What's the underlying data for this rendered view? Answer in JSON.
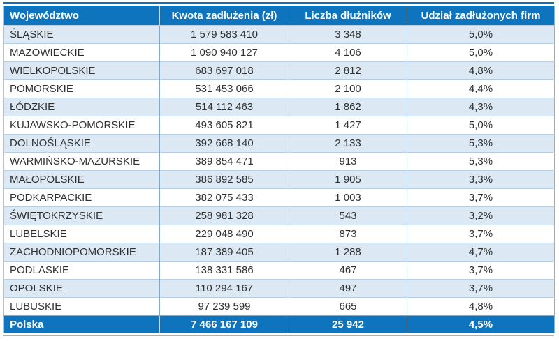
{
  "colors": {
    "header_bg": "#0E74BD",
    "stripe_bg": "#DCE9F4",
    "row_border": "#B8CFE2",
    "col_border": "#84A9C7",
    "header_divider": "#BCD6EA",
    "text_color": "#303030"
  },
  "chart_data": {
    "type": "table",
    "columns": [
      "Województwo",
      "Kwota zadłużenia (zł)",
      "Liczba dłużników",
      "Udział zadłużonych firm"
    ],
    "rows": [
      [
        "ŚLĄSKIE",
        "1 579 583 410",
        "3 348",
        "5,0%"
      ],
      [
        "MAZOWIECKIE",
        "1 090 940 127",
        "4 106",
        "5,0%"
      ],
      [
        "WIELKOPOLSKIE",
        "683 697 018",
        "2 812",
        "4,8%"
      ],
      [
        "POMORSKIE",
        "531 453 066",
        "2 100",
        "4,4%"
      ],
      [
        "ŁÓDZKIE",
        "514 112 463",
        "1 862",
        "4,3%"
      ],
      [
        "KUJAWSKO-POMORSKIE",
        "493 605 821",
        "1 427",
        "5,0%"
      ],
      [
        "DOLNOŚLĄSKIE",
        "392 668 140",
        "2 133",
        "5,3%"
      ],
      [
        "WARMIŃSKO-MAZURSKIE",
        "389 854 471",
        "913",
        "5,3%"
      ],
      [
        "MAŁOPOLSKIE",
        "386 892 585",
        "1 905",
        "3,3%"
      ],
      [
        "PODKARPACKIE",
        "382 075 433",
        "1 003",
        "3,7%"
      ],
      [
        "ŚWIĘTOKRZYSKIE",
        "258 981 328",
        "543",
        "3,2%"
      ],
      [
        "LUBELSKIE",
        "229 048 490",
        "873",
        "3,7%"
      ],
      [
        "ZACHODNIOPOMORSKIE",
        "187 389 405",
        "1 288",
        "4,7%"
      ],
      [
        "PODLASKIE",
        "138 331 586",
        "467",
        "3,7%"
      ],
      [
        "OPOLSKIE",
        "110 294 167",
        "497",
        "3,7%"
      ],
      [
        "LUBUSKIE",
        "97 239 599",
        "665",
        "4,8%"
      ]
    ],
    "total_row": [
      "Polska",
      "7 466 167 109",
      "25 942",
      "4,5%"
    ]
  }
}
